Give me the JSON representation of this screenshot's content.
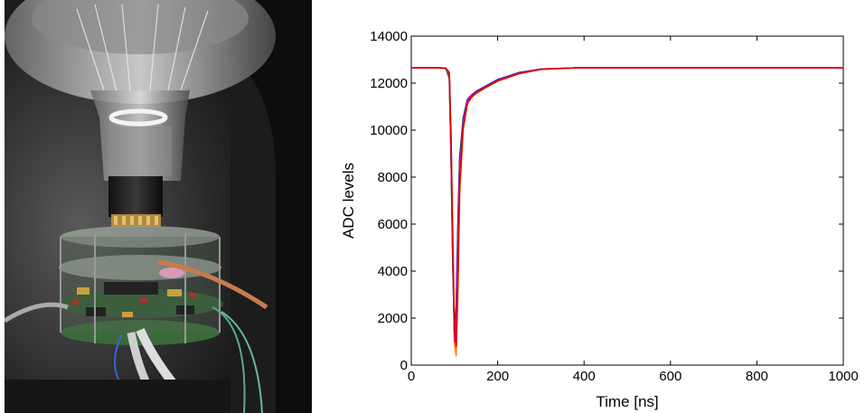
{
  "photo": {
    "description_icon": "photomultiplier-electronics-photo-icon"
  },
  "chart_data": {
    "type": "line",
    "title": "",
    "xlabel": "Time [ns]",
    "ylabel": "ADC levels",
    "xlim": [
      0,
      1000
    ],
    "ylim": [
      0,
      14000
    ],
    "xticks": [
      0,
      200,
      400,
      600,
      800,
      1000
    ],
    "yticks": [
      0,
      2000,
      4000,
      6000,
      8000,
      10000,
      12000,
      14000
    ],
    "grid": false,
    "legend": "none",
    "series": [
      {
        "color": "#0000cc",
        "x": [
          0,
          60,
          80,
          88,
          92,
          96,
          100,
          104,
          108,
          112,
          120,
          130,
          140,
          150,
          170,
          200,
          250,
          300,
          380,
          500,
          700,
          1000
        ],
        "y": [
          12650,
          12650,
          12640,
          12300,
          9000,
          4500,
          1200,
          2500,
          6000,
          8800,
          10500,
          11300,
          11500,
          11650,
          11850,
          12150,
          12450,
          12600,
          12650,
          12650,
          12650,
          12650
        ]
      },
      {
        "color": "#008800",
        "x": [
          0,
          60,
          80,
          88,
          92,
          96,
          100,
          104,
          108,
          112,
          120,
          130,
          140,
          150,
          170,
          200,
          250,
          300,
          380,
          500,
          700,
          1000
        ],
        "y": [
          12650,
          12650,
          12640,
          12200,
          8800,
          4200,
          1500,
          2000,
          5600,
          8600,
          10400,
          11200,
          11450,
          11600,
          11800,
          12100,
          12420,
          12590,
          12650,
          12650,
          12650,
          12650
        ]
      },
      {
        "color": "#ff8800",
        "x": [
          0,
          60,
          80,
          88,
          92,
          96,
          100,
          104,
          108,
          112,
          120,
          130,
          140,
          150,
          170,
          200,
          250,
          300,
          380,
          500,
          700,
          1000
        ],
        "y": [
          12650,
          12650,
          12640,
          12400,
          9500,
          5000,
          900,
          400,
          3000,
          7200,
          10000,
          11100,
          11400,
          11550,
          11780,
          12080,
          12400,
          12580,
          12650,
          12650,
          12650,
          12650
        ]
      },
      {
        "color": "#cc00cc",
        "x": [
          0,
          60,
          80,
          88,
          92,
          96,
          100,
          104,
          108,
          112,
          120,
          130,
          140,
          150,
          170,
          200,
          250,
          300,
          380,
          500,
          700,
          1000
        ],
        "y": [
          12650,
          12650,
          12640,
          12350,
          9200,
          4800,
          1000,
          1800,
          5200,
          8200,
          10300,
          11250,
          11480,
          11620,
          11820,
          12120,
          12430,
          12600,
          12650,
          12650,
          12650,
          12650
        ]
      },
      {
        "color": "#dd0000",
        "x": [
          0,
          60,
          80,
          88,
          92,
          96,
          100,
          104,
          108,
          112,
          120,
          130,
          140,
          150,
          170,
          200,
          250,
          300,
          380,
          500,
          700,
          1000
        ],
        "y": [
          12650,
          12650,
          12640,
          12450,
          9800,
          5500,
          1600,
          800,
          3600,
          7600,
          10100,
          11150,
          11420,
          11580,
          11800,
          12100,
          12410,
          12590,
          12650,
          12650,
          12650,
          12650
        ]
      }
    ]
  }
}
